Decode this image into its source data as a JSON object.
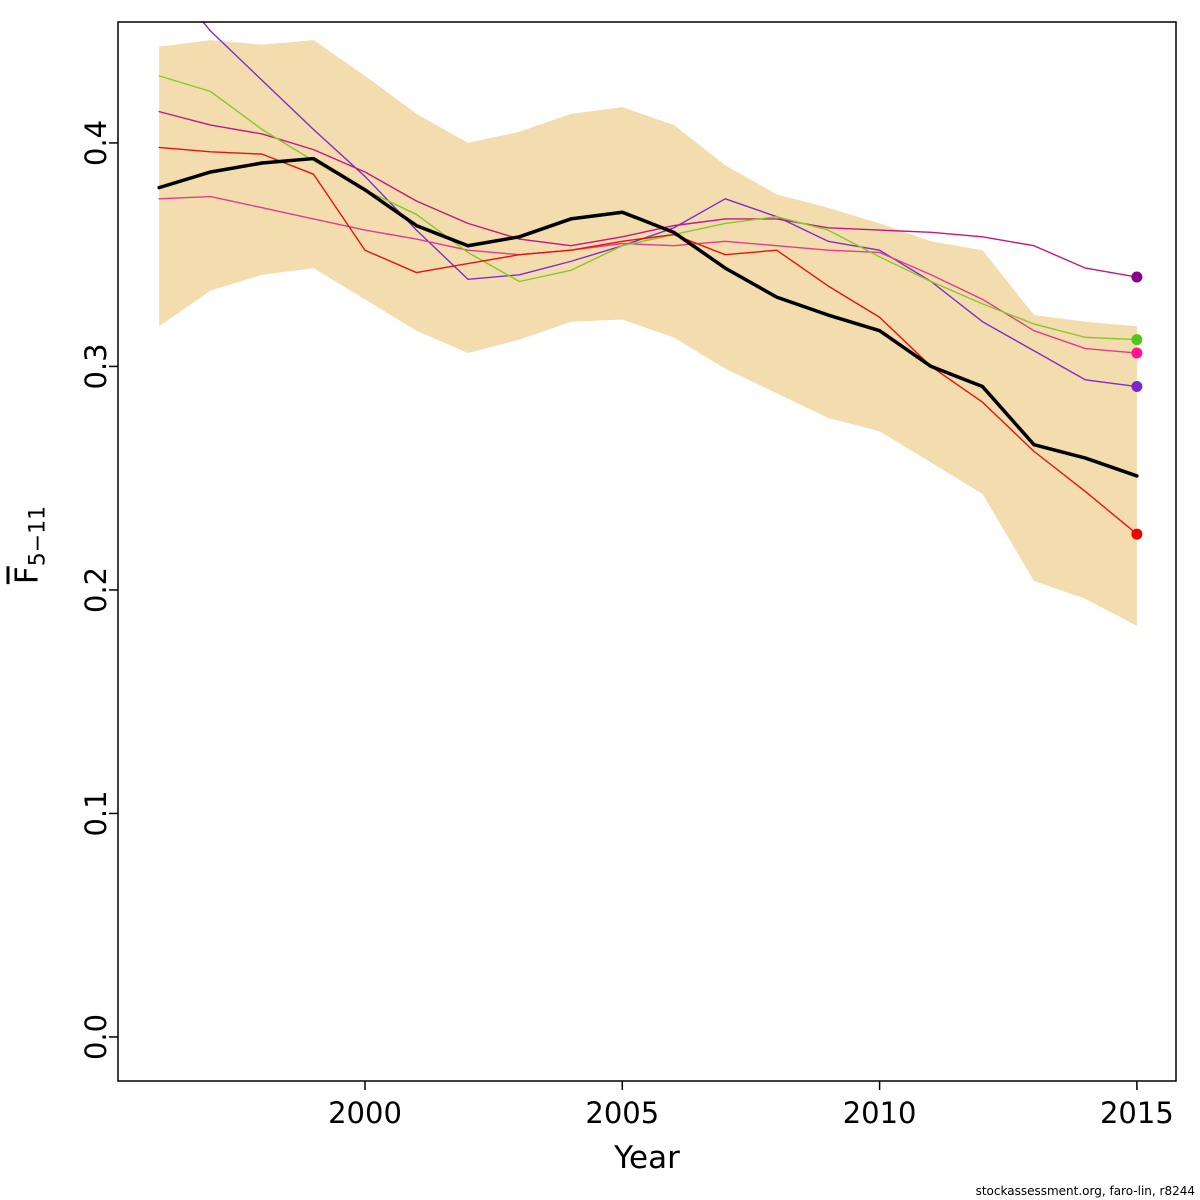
{
  "chart_data": {
    "type": "line",
    "title": "",
    "xlabel": "Year",
    "ylabel_base": "F",
    "ylabel_sub": "5−11",
    "watermark": "stockassessment.org, faro-lin, r8244",
    "xlim": [
      1995.2,
      2015.76
    ],
    "ylim": [
      -0.0197,
      0.4541
    ],
    "xticks": [
      2000,
      2005,
      2010,
      2015
    ],
    "xtick_labels": [
      "2000",
      "2005",
      "2010",
      "2015"
    ],
    "yticks": [
      0.0,
      0.1,
      0.2,
      0.3,
      0.4
    ],
    "ytick_labels": [
      "0.0",
      "0.1",
      "0.2",
      "0.3",
      "0.4"
    ],
    "grid": false,
    "legend": false,
    "x": [
      1996,
      1997,
      1998,
      1999,
      2000,
      2001,
      2002,
      2003,
      2004,
      2005,
      2006,
      2007,
      2008,
      2009,
      2010,
      2011,
      2012,
      2013,
      2014,
      2015
    ],
    "band": {
      "name": "confidence-band",
      "color": "#f3dcae",
      "upper": [
        0.443,
        0.446,
        0.444,
        0.446,
        0.43,
        0.413,
        0.4,
        0.405,
        0.413,
        0.416,
        0.408,
        0.39,
        0.377,
        0.371,
        0.364,
        0.356,
        0.352,
        0.323,
        0.32,
        0.318
      ],
      "lower": [
        0.318,
        0.334,
        0.341,
        0.344,
        0.33,
        0.316,
        0.306,
        0.312,
        0.32,
        0.321,
        0.313,
        0.299,
        0.288,
        0.277,
        0.271,
        0.257,
        0.243,
        0.204,
        0.196,
        0.184
      ]
    },
    "series": [
      {
        "name": "retro-run-purple",
        "color": "#7d2fc9",
        "width": 1.4,
        "dot": true,
        "dot_color": "#7d26cd",
        "values": [
          0.478,
          0.45,
          0.428,
          0.406,
          0.385,
          0.361,
          0.339,
          0.341,
          0.347,
          0.354,
          0.362,
          0.375,
          0.367,
          0.356,
          0.352,
          0.338,
          0.32,
          0.307,
          0.294,
          0.291
        ]
      },
      {
        "name": "retro-run-maroon",
        "color": "#c71585",
        "width": 1.4,
        "dot": true,
        "dot_color": "#8b008b",
        "values": [
          0.414,
          0.408,
          0.404,
          0.397,
          0.387,
          0.374,
          0.364,
          0.357,
          0.354,
          0.358,
          0.363,
          0.366,
          0.366,
          0.362,
          0.361,
          0.36,
          0.358,
          0.354,
          0.344,
          0.34
        ]
      },
      {
        "name": "retro-run-magenta",
        "color": "#e6398f",
        "width": 1.4,
        "dot": true,
        "dot_color": "#ff1493",
        "values": [
          0.375,
          0.376,
          0.371,
          0.366,
          0.361,
          0.357,
          0.352,
          0.35,
          0.352,
          0.355,
          0.354,
          0.356,
          0.354,
          0.352,
          0.351,
          0.341,
          0.33,
          0.316,
          0.308,
          0.306
        ]
      },
      {
        "name": "retro-run-green",
        "color": "#86c927",
        "width": 1.4,
        "dot": true,
        "dot_color": "#4cc71e",
        "values": [
          0.43,
          0.423,
          0.406,
          0.392,
          0.379,
          0.368,
          0.351,
          0.338,
          0.343,
          0.354,
          0.359,
          0.364,
          0.367,
          0.361,
          0.349,
          0.338,
          0.328,
          0.319,
          0.313,
          0.312
        ]
      },
      {
        "name": "retro-run-red",
        "color": "#e8130d",
        "width": 1.4,
        "dot": true,
        "dot_color": "#f00000",
        "values": [
          0.398,
          0.396,
          0.395,
          0.386,
          0.352,
          0.342,
          0.346,
          0.35,
          0.352,
          0.356,
          0.359,
          0.35,
          0.352,
          0.336,
          0.322,
          0.3,
          0.284,
          0.262,
          0.244,
          0.225
        ]
      },
      {
        "name": "base-run",
        "color": "#000000",
        "width": 3.5,
        "dot": false,
        "values": [
          0.38,
          0.387,
          0.391,
          0.393,
          0.379,
          0.363,
          0.354,
          0.358,
          0.366,
          0.369,
          0.36,
          0.344,
          0.331,
          0.323,
          0.316,
          0.3,
          0.291,
          0.265,
          0.259,
          0.251
        ]
      }
    ]
  }
}
